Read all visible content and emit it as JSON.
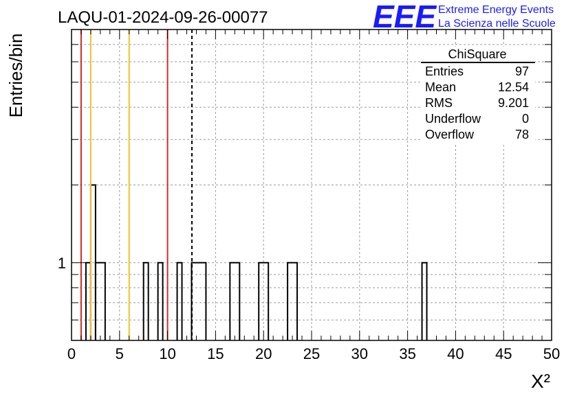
{
  "header": {
    "title": "LAQU-01-2024-09-26-00077",
    "logo_text": "EEE",
    "logo_line1": "Extreme Energy Events",
    "logo_line2": "La Scienza nelle Scuole"
  },
  "stats_box": {
    "title": "ChiSquare",
    "rows": [
      {
        "label": "Entries",
        "value": "97"
      },
      {
        "label": "Mean",
        "value": "12.54"
      },
      {
        "label": "RMS",
        "value": "9.201"
      },
      {
        "label": "Underflow",
        "value": "0"
      },
      {
        "label": "Overflow",
        "value": "78"
      }
    ]
  },
  "chart_data": {
    "type": "bar",
    "title": "LAQU-01-2024-09-26-00077",
    "xlabel": "X²",
    "ylabel": "Entries/bin",
    "xlim": [
      0,
      50
    ],
    "ylog": true,
    "ylim": [
      0.5,
      8
    ],
    "x_ticks": [
      "0",
      "5",
      "10",
      "15",
      "20",
      "25",
      "30",
      "35",
      "40",
      "45",
      "50"
    ],
    "y_tick_labels": [
      "1"
    ],
    "grid": true,
    "bin_width": 0.5,
    "bins": [
      {
        "x0": 1.5,
        "x1": 2.0,
        "count": 1
      },
      {
        "x0": 2.0,
        "x1": 2.5,
        "count": 2
      },
      {
        "x0": 2.5,
        "x1": 3.5,
        "count": 1
      },
      {
        "x0": 7.5,
        "x1": 8.0,
        "count": 1
      },
      {
        "x0": 9.0,
        "x1": 9.5,
        "count": 1
      },
      {
        "x0": 11.0,
        "x1": 11.5,
        "count": 1
      },
      {
        "x0": 12.5,
        "x1": 14.0,
        "count": 1
      },
      {
        "x0": 16.5,
        "x1": 17.5,
        "count": 1
      },
      {
        "x0": 19.5,
        "x1": 20.5,
        "count": 1
      },
      {
        "x0": 22.5,
        "x1": 23.5,
        "count": 1
      },
      {
        "x0": 36.5,
        "x1": 37.0,
        "count": 1
      }
    ],
    "vertical_lines": [
      {
        "x": 1.0,
        "color": "#d42a2a",
        "style": "solid"
      },
      {
        "x": 2.0,
        "color": "#f2c12e",
        "style": "solid"
      },
      {
        "x": 6.0,
        "color": "#f2c12e",
        "style": "solid"
      },
      {
        "x": 10.0,
        "color": "#d42a2a",
        "style": "solid"
      },
      {
        "x": 12.54,
        "color": "#000000",
        "style": "dashed"
      }
    ]
  },
  "colors": {
    "logo": "#1a1aff",
    "frame": "#000000",
    "grid": "#9a9a9a"
  }
}
